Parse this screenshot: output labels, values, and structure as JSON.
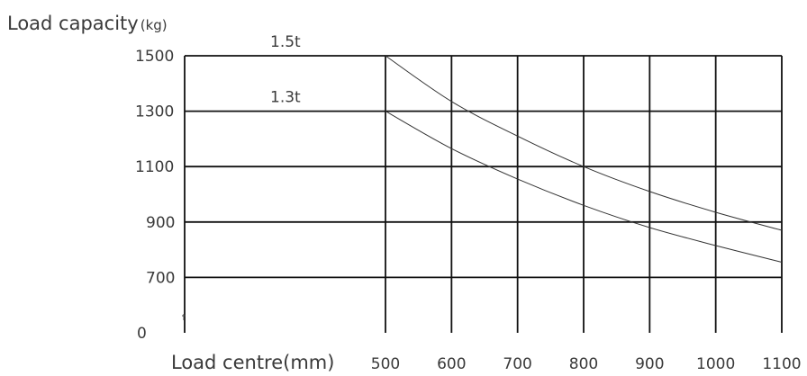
{
  "chart_data": {
    "type": "line",
    "title": "Load capacity",
    "title_unit": "(kg)",
    "xlabel": "Load centre(mm)",
    "ylabel": "",
    "x_ticks": [
      "500",
      "600",
      "700",
      "800",
      "900",
      "1000",
      "1100"
    ],
    "y_ticks": [
      "1500",
      "1300",
      "1100",
      "900",
      "700",
      "0"
    ],
    "xlim": [
      500,
      1100
    ],
    "ylim_grid": [
      700,
      1500
    ],
    "grid": true,
    "series": [
      {
        "name": "1.5t",
        "x": [
          500,
          600,
          700,
          800,
          900,
          1000,
          1100
        ],
        "y": [
          1500,
          1335,
          1210,
          1100,
          1010,
          935,
          870
        ]
      },
      {
        "name": "1.3t",
        "x": [
          500,
          600,
          700,
          800,
          900,
          1000,
          1100
        ],
        "y": [
          1300,
          1165,
          1055,
          960,
          880,
          815,
          755
        ]
      }
    ],
    "colors": {
      "grid": "#111111",
      "curve": "#333333",
      "text": "#3a3a3a"
    }
  }
}
